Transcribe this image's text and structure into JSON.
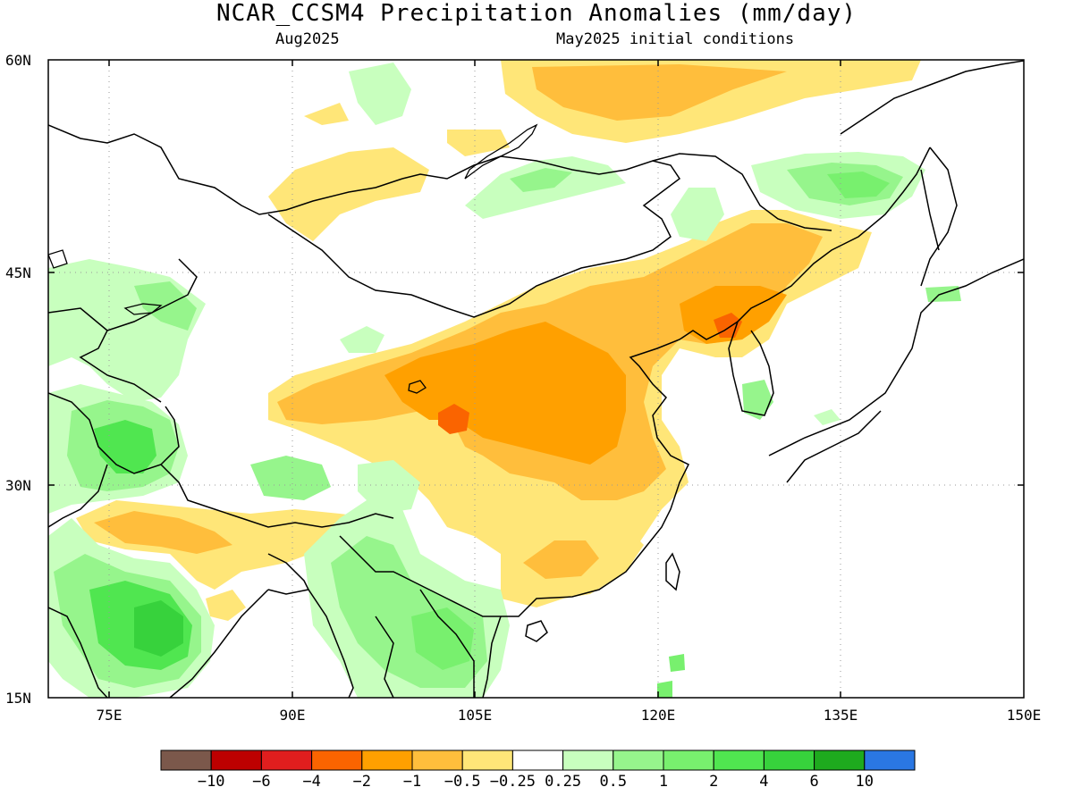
{
  "header": {
    "title": "NCAR_CCSM4 Precipitation Anomalies (mm/day)",
    "valid_month": "Aug2025",
    "initial_conditions": "May2025 initial conditions"
  },
  "map": {
    "lon_range": [
      70,
      150
    ],
    "lat_range": [
      15,
      60
    ],
    "lat_ticks": [
      "15N",
      "30N",
      "45N",
      "60N"
    ],
    "lon_ticks": [
      "75E",
      "90E",
      "105E",
      "120E",
      "135E",
      "150E"
    ]
  },
  "colorbar": {
    "colors": [
      "#7b584b",
      "#bd0000",
      "#e01e1e",
      "#fa6400",
      "#ffa000",
      "#ffbe3c",
      "#ffe678",
      "#ffffff",
      "#c8ffbe",
      "#96f58c",
      "#78f06e",
      "#50e650",
      "#37d23c",
      "#1eaa1e",
      "#2a77e3"
    ],
    "labels": [
      "-10",
      "-6",
      "-4",
      "-2",
      "-1",
      "-0.5",
      "-0.25",
      "0.25",
      "0.5",
      "1",
      "2",
      "4",
      "6",
      "10"
    ]
  },
  "anomaly_colors": {
    "strong_dry": "#fa6400",
    "dry": "#ffa000",
    "moderate_dry": "#ffbe3c",
    "slight_dry": "#ffe678",
    "slight_wet": "#c8ffbe",
    "wet": "#96f58c",
    "moderate_wet": "#78f06e",
    "strong_wet": "#50e650",
    "very_wet": "#37d23c"
  }
}
